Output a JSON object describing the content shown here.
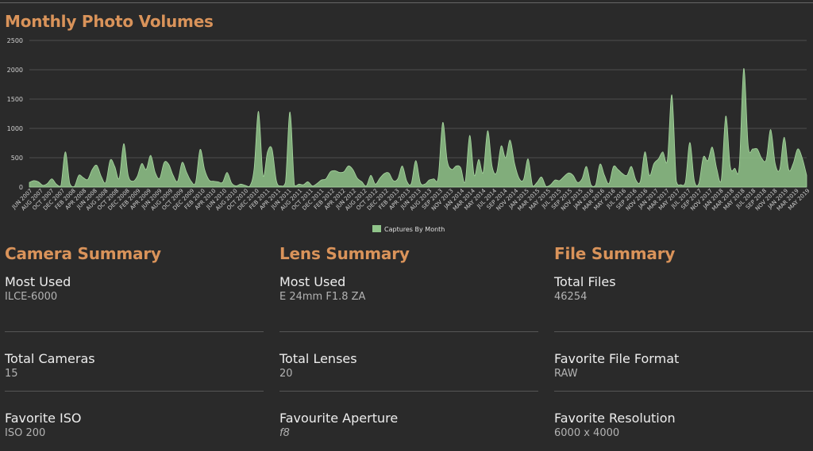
{
  "chart_title": "Monthly Photo Volumes",
  "chart_data": {
    "type": "area",
    "title": "Monthly Photo Volumes",
    "series": [
      {
        "name": "Captures By Month",
        "color": "#90c48a"
      }
    ],
    "legend_position": "bottom-center",
    "ylim": [
      0,
      2500
    ],
    "yticks": [
      0,
      500,
      1000,
      1500,
      2000,
      2500
    ],
    "grid": true,
    "x_start": "2007-06",
    "x_labels": [
      "JUN 2007",
      "AUG 2007",
      "OCT 2007",
      "DEC 2007",
      "FEB 2008",
      "APR 2008",
      "JUN 2008",
      "AUG 2008",
      "OCT 2008",
      "DEC 2008",
      "FEB 2009",
      "APR 2009",
      "JUN 2009",
      "AUG 2009",
      "OCT 2009",
      "DEC 2009",
      "FEB 2010",
      "APR 2010",
      "JUN 2010",
      "AUG 2010",
      "OCT 2010",
      "DEC 2010",
      "FEB 2011",
      "APR 2011",
      "JUN 2011",
      "AUG 2011",
      "OCT 2011",
      "DEC 2011",
      "FEB 2012",
      "APR 2012",
      "JUN 2012",
      "AUG 2012",
      "OCT 2012",
      "DEC 2012",
      "FEB 2013",
      "APR 2013",
      "JUN 2013",
      "AUG 2013",
      "SEP 2013",
      "NOV 2013",
      "JAN 2014",
      "MAR 2014",
      "MAY 2014",
      "JUL 2014",
      "SEP 2014",
      "NOV 2014",
      "JAN 2015",
      "MAR 2015",
      "MAY 2015",
      "JUL 2015",
      "SEP 2015",
      "NOV 2015",
      "JAN 2016",
      "MAR 2016",
      "MAY 2016",
      "JUL 2016",
      "SEP 2016",
      "NOV 2016",
      "JAN 2017",
      "MAR 2017",
      "MAY 2017",
      "JUL 2017",
      "SEP 2017",
      "NOV 2017",
      "JAN 2018",
      "MAR 2018",
      "MAY 2018",
      "JUL 2018",
      "SEP 2018",
      "NOV 2018",
      "JAN 2019",
      "MAR 2019",
      "MAY 2019"
    ],
    "values": [
      80,
      110,
      90,
      30,
      60,
      140,
      50,
      20,
      600,
      60,
      10,
      200,
      160,
      130,
      300,
      370,
      180,
      80,
      460,
      350,
      150,
      740,
      200,
      100,
      180,
      400,
      300,
      540,
      250,
      150,
      420,
      390,
      200,
      100,
      420,
      250,
      100,
      80,
      640,
      300,
      120,
      100,
      90,
      80,
      250,
      70,
      20,
      50,
      30,
      10,
      300,
      1290,
      200,
      600,
      650,
      100,
      20,
      80,
      1280,
      30,
      50,
      40,
      90,
      20,
      60,
      120,
      140,
      260,
      280,
      250,
      260,
      360,
      300,
      150,
      90,
      20,
      200,
      50,
      150,
      230,
      240,
      110,
      140,
      360,
      100,
      60,
      450,
      80,
      50,
      120,
      140,
      170,
      1100,
      450,
      300,
      360,
      330,
      90,
      880,
      200,
      470,
      250,
      960,
      350,
      250,
      700,
      500,
      800,
      400,
      150,
      130,
      480,
      20,
      80,
      170,
      10,
      40,
      120,
      110,
      180,
      240,
      200,
      80,
      140,
      350,
      40,
      30,
      390,
      200,
      60,
      350,
      300,
      230,
      200,
      350,
      120,
      100,
      600,
      200,
      400,
      480,
      600,
      460,
      1570,
      100,
      40,
      80,
      760,
      110,
      60,
      510,
      450,
      680,
      310,
      120,
      1210,
      350,
      320,
      360,
      2020,
      700,
      650,
      650,
      490,
      470,
      980,
      400,
      300,
      850,
      300,
      400,
      650,
      500,
      200
    ]
  },
  "legend_label": "Captures By Month",
  "camera": {
    "title": "Camera Summary",
    "stats": [
      {
        "label": "Most Used",
        "value": "ILCE-6000"
      },
      {
        "label": "Total Cameras",
        "value": "15"
      },
      {
        "label": "Favorite ISO",
        "value": "ISO 200"
      }
    ]
  },
  "lens": {
    "title": "Lens Summary",
    "stats": [
      {
        "label": "Most Used",
        "value": "E 24mm F1.8 ZA"
      },
      {
        "label": "Total Lenses",
        "value": "20"
      },
      {
        "label": "Favourite Aperture",
        "value": "f8"
      }
    ]
  },
  "files": {
    "title": "File Summary",
    "stats": [
      {
        "label": "Total Files",
        "value": "46254"
      },
      {
        "label": "Favorite File Format",
        "value": "RAW"
      },
      {
        "label": "Favorite Resolution",
        "value": "6000 x 4000"
      }
    ]
  }
}
